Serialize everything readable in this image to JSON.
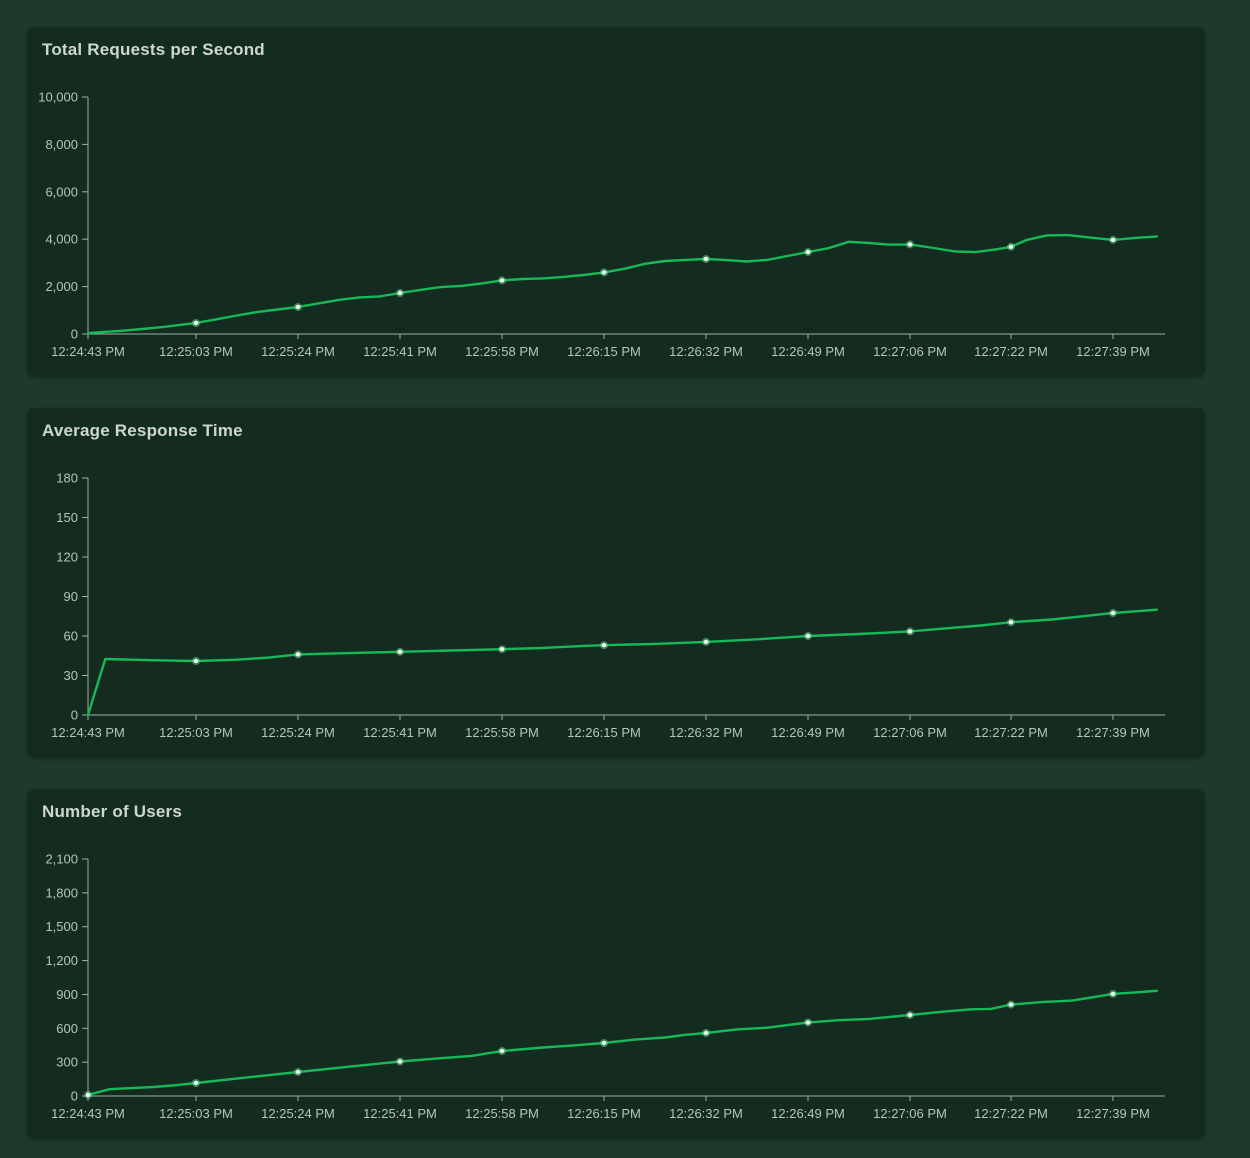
{
  "theme": {
    "page_bg": "#1d3a2c",
    "card_bg": "#142c20",
    "title_color": "#cdd7cf",
    "axis_color": "#9eafa5",
    "label_color": "#b7c3bb",
    "line_green": "#17b857"
  },
  "chart_data": [
    {
      "type": "line",
      "title": "Total Requests per Second",
      "grid": "off",
      "legend": "none",
      "ylim": [
        0,
        10000
      ],
      "y_tick_labels": [
        "0",
        "2,000",
        "4,000",
        "6,000",
        "8,000",
        "10,000"
      ],
      "x_tick_labels": [
        "12:24:43 PM",
        "12:25:03 PM",
        "12:25:24 PM",
        "12:25:41 PM",
        "12:25:58 PM",
        "12:26:15 PM",
        "12:26:32 PM",
        "12:26:49 PM",
        "12:27:06 PM",
        "12:27:22 PM",
        "12:27:39 PM"
      ],
      "x_axis_note": "points use tick-index units; 0 = 12:24:43 PM, 10 = 12:27:39 PM",
      "series": [
        {
          "name": "Total Requests per Second",
          "color": "#17b857",
          "marker_fill": "#f2fff7",
          "marker_halo": "rgba(125,230,165,0.45)",
          "marker_ticks": [
            1,
            2,
            3,
            4,
            5,
            6,
            7,
            8,
            9,
            10
          ],
          "tick_values": [
            40,
            465,
            1140,
            1730,
            2260,
            2600,
            3165,
            3460,
            3780,
            3680,
            3970
          ],
          "points": [
            [
              0,
              40
            ],
            [
              0.15,
              90
            ],
            [
              0.3,
              130
            ],
            [
              0.5,
              210
            ],
            [
              0.7,
              300
            ],
            [
              0.85,
              385
            ],
            [
              1,
              465
            ],
            [
              1.2,
              620
            ],
            [
              1.4,
              780
            ],
            [
              1.6,
              930
            ],
            [
              1.8,
              1035
            ],
            [
              2,
              1140
            ],
            [
              2.2,
              1290
            ],
            [
              2.4,
              1440
            ],
            [
              2.6,
              1545
            ],
            [
              2.8,
              1585
            ],
            [
              3,
              1730
            ],
            [
              3.2,
              1860
            ],
            [
              3.4,
              1980
            ],
            [
              3.6,
              2030
            ],
            [
              3.8,
              2130
            ],
            [
              4,
              2260
            ],
            [
              4.2,
              2320
            ],
            [
              4.4,
              2345
            ],
            [
              4.6,
              2410
            ],
            [
              4.8,
              2490
            ],
            [
              5,
              2600
            ],
            [
              5.2,
              2750
            ],
            [
              5.4,
              2960
            ],
            [
              5.6,
              3080
            ],
            [
              5.8,
              3125
            ],
            [
              6,
              3165
            ],
            [
              6.2,
              3120
            ],
            [
              6.4,
              3060
            ],
            [
              6.6,
              3125
            ],
            [
              6.8,
              3290
            ],
            [
              7,
              3460
            ],
            [
              7.2,
              3620
            ],
            [
              7.4,
              3890
            ],
            [
              7.6,
              3840
            ],
            [
              7.8,
              3770
            ],
            [
              8,
              3780
            ],
            [
              8.2,
              3650
            ],
            [
              8.45,
              3480
            ],
            [
              8.65,
              3455
            ],
            [
              8.85,
              3570
            ],
            [
              9,
              3680
            ],
            [
              9.15,
              3960
            ],
            [
              9.35,
              4160
            ],
            [
              9.55,
              4175
            ],
            [
              9.8,
              4060
            ],
            [
              10,
              3970
            ],
            [
              10.2,
              4045
            ],
            [
              10.43,
              4120
            ]
          ]
        }
      ]
    },
    {
      "type": "line",
      "title": "Average Response Time",
      "grid": "off",
      "legend": "none",
      "ylim": [
        0,
        180
      ],
      "y_tick_labels": [
        "0",
        "30",
        "60",
        "90",
        "120",
        "150",
        "180"
      ],
      "x_tick_labels": [
        "12:24:43 PM",
        "12:25:03 PM",
        "12:25:24 PM",
        "12:25:41 PM",
        "12:25:58 PM",
        "12:26:15 PM",
        "12:26:32 PM",
        "12:26:49 PM",
        "12:27:06 PM",
        "12:27:22 PM",
        "12:27:39 PM"
      ],
      "x_axis_note": "points use tick-index units; 0 = 12:24:43 PM, 10 = 12:27:39 PM",
      "series": [
        {
          "name": "Average Response Time",
          "color": "#17b857",
          "marker_fill": "#f2fff7",
          "marker_halo": "rgba(125,230,165,0.45)",
          "marker_ticks": [
            1,
            2,
            3,
            4,
            5,
            6,
            7,
            8,
            9,
            10
          ],
          "tick_values": [
            0,
            41,
            46,
            48,
            50,
            53,
            55.5,
            60,
            63.5,
            70.5,
            77.5
          ],
          "points": [
            [
              0,
              0
            ],
            [
              0.16,
              42.5
            ],
            [
              0.4,
              42
            ],
            [
              0.7,
              41.5
            ],
            [
              1,
              41
            ],
            [
              1.4,
              42
            ],
            [
              1.7,
              43.5
            ],
            [
              2,
              46
            ],
            [
              2.5,
              47
            ],
            [
              3,
              48
            ],
            [
              3.5,
              49
            ],
            [
              4,
              50
            ],
            [
              4.4,
              51
            ],
            [
              4.8,
              52.5
            ],
            [
              5,
              53
            ],
            [
              5.5,
              54
            ],
            [
              6,
              55.5
            ],
            [
              6.5,
              57.5
            ],
            [
              7,
              60
            ],
            [
              7.5,
              61.5
            ],
            [
              8,
              63.5
            ],
            [
              8.3,
              65.5
            ],
            [
              8.7,
              68
            ],
            [
              9,
              70.5
            ],
            [
              9.4,
              72.5
            ],
            [
              9.7,
              75
            ],
            [
              10,
              77.5
            ],
            [
              10.43,
              80
            ]
          ]
        }
      ]
    },
    {
      "type": "line",
      "title": "Number of Users",
      "grid": "off",
      "legend": "none",
      "ylim": [
        0,
        2100
      ],
      "y_tick_labels": [
        "0",
        "300",
        "600",
        "900",
        "1,200",
        "1,500",
        "1,800",
        "2,100"
      ],
      "x_tick_labels": [
        "12:24:43 PM",
        "12:25:03 PM",
        "12:25:24 PM",
        "12:25:41 PM",
        "12:25:58 PM",
        "12:26:15 PM",
        "12:26:32 PM",
        "12:26:49 PM",
        "12:27:06 PM",
        "12:27:22 PM",
        "12:27:39 PM"
      ],
      "x_axis_note": "points use tick-index units; 0 = 12:24:43 PM, 10 = 12:27:39 PM",
      "series": [
        {
          "name": "Number of Users",
          "color": "#17b857",
          "marker_fill": "#f2fff7",
          "marker_halo": "rgba(125,230,165,0.45)",
          "marker_ticks": [
            0,
            1,
            2,
            3,
            4,
            5,
            6,
            7,
            8,
            9,
            10
          ],
          "tick_values": [
            10,
            115,
            213,
            306,
            399,
            470,
            558,
            651,
            718,
            810,
            905
          ],
          "points": [
            [
              0,
              10
            ],
            [
              0.2,
              60
            ],
            [
              0.4,
              70
            ],
            [
              0.6,
              80
            ],
            [
              0.8,
              95
            ],
            [
              1,
              115
            ],
            [
              1.5,
              165
            ],
            [
              2,
              213
            ],
            [
              2.5,
              260
            ],
            [
              3,
              306
            ],
            [
              3.4,
              335
            ],
            [
              3.7,
              355
            ],
            [
              4,
              399
            ],
            [
              4.4,
              430
            ],
            [
              4.7,
              448
            ],
            [
              5,
              470
            ],
            [
              5.3,
              500
            ],
            [
              5.6,
              518
            ],
            [
              5.8,
              542
            ],
            [
              6,
              558
            ],
            [
              6.3,
              590
            ],
            [
              6.6,
              605
            ],
            [
              7,
              651
            ],
            [
              7.3,
              672
            ],
            [
              7.6,
              683
            ],
            [
              8,
              718
            ],
            [
              8.3,
              745
            ],
            [
              8.6,
              768
            ],
            [
              8.8,
              772
            ],
            [
              9,
              810
            ],
            [
              9.3,
              832
            ],
            [
              9.6,
              845
            ],
            [
              10,
              905
            ],
            [
              10.2,
              916
            ],
            [
              10.43,
              932
            ]
          ]
        }
      ]
    }
  ]
}
